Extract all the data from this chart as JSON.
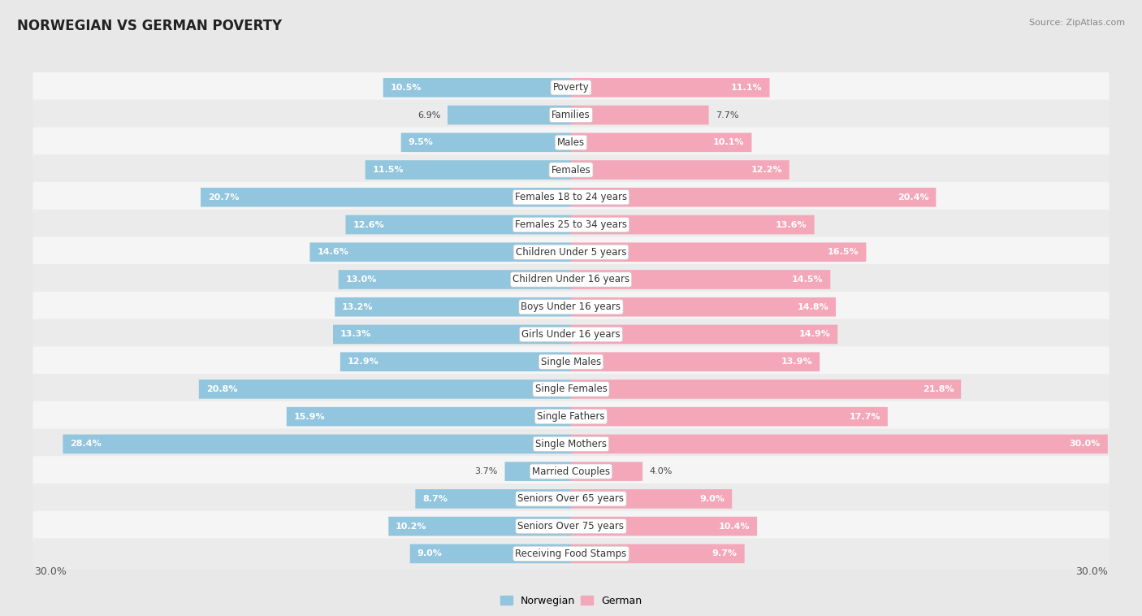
{
  "title": "NORWEGIAN VS GERMAN POVERTY",
  "source": "Source: ZipAtlas.com",
  "categories": [
    "Poverty",
    "Families",
    "Males",
    "Females",
    "Females 18 to 24 years",
    "Females 25 to 34 years",
    "Children Under 5 years",
    "Children Under 16 years",
    "Boys Under 16 years",
    "Girls Under 16 years",
    "Single Males",
    "Single Females",
    "Single Fathers",
    "Single Mothers",
    "Married Couples",
    "Seniors Over 65 years",
    "Seniors Over 75 years",
    "Receiving Food Stamps"
  ],
  "norwegian": [
    10.5,
    6.9,
    9.5,
    11.5,
    20.7,
    12.6,
    14.6,
    13.0,
    13.2,
    13.3,
    12.9,
    20.8,
    15.9,
    28.4,
    3.7,
    8.7,
    10.2,
    9.0
  ],
  "german": [
    11.1,
    7.7,
    10.1,
    12.2,
    20.4,
    13.6,
    16.5,
    14.5,
    14.8,
    14.9,
    13.9,
    21.8,
    17.7,
    30.0,
    4.0,
    9.0,
    10.4,
    9.7
  ],
  "norwegian_color": "#92c5de",
  "german_color": "#f4a7b9",
  "background_color": "#e8e8e8",
  "row_bg_even": "#f5f5f5",
  "row_bg_odd": "#ebebeb",
  "axis_max": 30.0,
  "label_fontsize": 8.5,
  "title_fontsize": 12,
  "value_fontsize": 8,
  "source_fontsize": 8
}
